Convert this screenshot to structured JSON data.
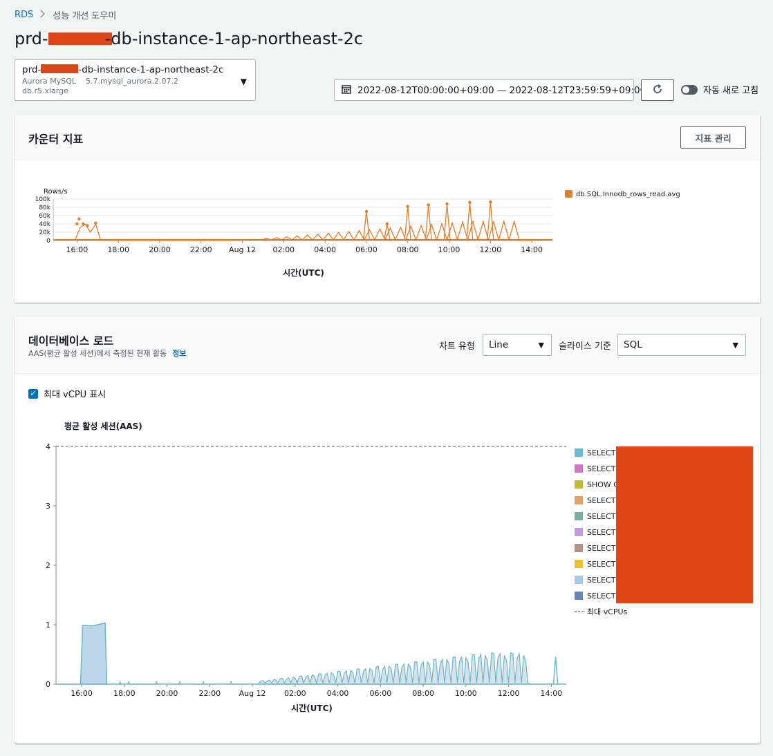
{
  "breadcrumb": {
    "root": "RDS",
    "current": "성능 개선 도우미"
  },
  "page": {
    "title_prefix": "prd-",
    "title_suffix": "-db-instance-1-ap-northeast-2c"
  },
  "instance": {
    "name_prefix": "prd-",
    "name_suffix": "-db-instance-1-ap-northeast-2c",
    "engine": "Aurora MySQL",
    "version": "5.7.mysql_aurora.2.07.2",
    "class": "db.r5.xlarge"
  },
  "date_range": "2022-08-12T00:00:00+09:00 — 2022-08-12T23:59:59+09:00",
  "auto_refresh_label": "자동 새로 고침",
  "counter_panel": {
    "title": "카운터 지표",
    "manage_button": "지표 관리"
  },
  "db_load_panel": {
    "title": "데이터베이스 로드",
    "subtitle": "AAS(평균 활성 세션)에서 측정된 현재 활동",
    "info_link": "정보",
    "chart_type_label": "차트 유형",
    "chart_type_value": "Line",
    "slice_label": "슬라이스 기준",
    "slice_value": "SQL",
    "show_vcpu_label": "최대 vCPU 표시"
  },
  "colors": {
    "accent": "#0073bb",
    "counter_series": "#e07f2e",
    "redaction": "#e0451a",
    "load_fill": "#bcd6ec",
    "load_line": "#6bb7c8"
  },
  "chart_data": [
    {
      "type": "line",
      "ylabel": "Rows/s",
      "xlabel": "시간(UTC)",
      "x_ticks": [
        "16:00",
        "18:00",
        "20:00",
        "22:00",
        "Aug 12",
        "02:00",
        "04:00",
        "06:00",
        "08:00",
        "10:00",
        "12:00",
        "14:00"
      ],
      "y_ticks": [
        "0",
        "20k",
        "40k",
        "60k",
        "80k",
        "100k"
      ],
      "ylim": [
        0,
        100000
      ],
      "legend_position": "right",
      "series": [
        {
          "name": "db.SQL.Innodb_rows_read.avg",
          "x_hours": [
            15.9,
            16.0,
            16.1,
            16.2,
            16.3,
            16.4,
            16.5,
            16.6,
            16.7,
            16.8,
            16.9,
            17.0,
            17.1,
            17.2,
            17.5,
            18.0,
            20.0,
            22.0,
            24.0,
            25.0,
            25.8,
            26.0,
            27.0,
            28.0,
            28.3,
            29.0,
            30.0,
            31.0,
            31.2,
            32.0,
            33.0,
            34.0,
            35.0,
            36.0,
            37.0,
            38.0,
            38.4,
            39.0,
            40.0,
            40.8,
            41.0,
            42.0,
            42.2,
            43.0,
            43.5,
            44.0,
            44.5,
            45.0,
            46.0,
            47.0,
            47.2,
            48.0
          ],
          "values": [
            0,
            40000,
            52000,
            38000,
            40000,
            20000,
            36000,
            28000,
            8000,
            42000,
            38000,
            1000,
            500,
            0,
            0,
            0,
            0,
            1000,
            2000,
            5000,
            8000,
            15000,
            20000,
            30000,
            25000,
            35000,
            40000,
            45000,
            70000,
            40000,
            40000,
            42000,
            42000,
            45000,
            45000,
            45000,
            82000,
            46000,
            46000,
            86000,
            45000,
            46000,
            88000,
            46000,
            46000,
            47000,
            92000,
            0,
            0,
            0,
            93000,
            0
          ]
        }
      ]
    },
    {
      "type": "area",
      "title": "평균 활성 세션(AAS)",
      "xlabel": "시간(UTC)",
      "x_ticks": [
        "16:00",
        "18:00",
        "20:00",
        "22:00",
        "Aug 12",
        "02:00",
        "04:00",
        "06:00",
        "08:00",
        "10:00",
        "12:00",
        "14:00"
      ],
      "y_ticks": [
        "0",
        "1",
        "2",
        "3",
        "4"
      ],
      "ylim": [
        0,
        4
      ],
      "max_vcpu": 4,
      "legend_position": "right",
      "series": [
        {
          "name": "SELECT",
          "color": "#6bbad0"
        },
        {
          "name": "SELECT",
          "color": "#d076c4"
        },
        {
          "name": "SHOW G",
          "color": "#bcbd32"
        },
        {
          "name": "SELECT",
          "color": "#e0a46a"
        },
        {
          "name": "SELECT",
          "color": "#7aad9c"
        },
        {
          "name": "SELECT",
          "color": "#c59be0"
        },
        {
          "name": "SELECT",
          "color": "#b4928a"
        },
        {
          "name": "SELECT",
          "color": "#e8c234"
        },
        {
          "name": "SELECT",
          "color": "#a8c9e4"
        },
        {
          "name": "SELECT",
          "color": "#6a86b7"
        },
        {
          "name": "최대 vCPUs",
          "color": "#545b64"
        }
      ],
      "total_aas_x_hours": [
        15.95,
        16.05,
        17.0,
        17.15,
        17.3,
        18.0,
        20.0,
        24.0,
        25.0,
        26.0,
        28.0,
        30.0,
        32.0,
        34.0,
        36.0,
        37.0,
        37.8,
        38.0,
        38.3,
        38.5,
        38.7
      ],
      "total_aas_values": [
        0,
        1.0,
        1.02,
        0.0,
        0.0,
        0.03,
        0.0,
        0.04,
        0.12,
        0.2,
        0.3,
        0.35,
        0.42,
        0.5,
        0.53,
        0.0,
        0.0,
        0.0,
        0.46,
        0.0,
        0.0
      ]
    }
  ]
}
